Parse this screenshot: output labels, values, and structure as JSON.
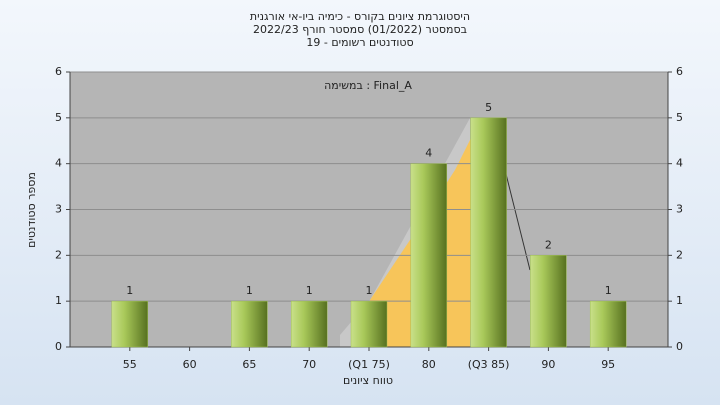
{
  "chart_data": {
    "type": "bar",
    "title": "היסטוגרמת ציונים בקורס - כימיה ביו-אי אורגנית",
    "subtitle": "בסמסטר (01/2022) סמסטר חורף 2022/23",
    "subtitle2": "סטודנטים רשומים - 19",
    "annotation": "במשימה : Final_A",
    "x_label": "טווח ציונים",
    "y_label": "מספר סטודנטים",
    "categories": [
      "55",
      "60",
      "65",
      "70",
      "(Q1 75)",
      "80",
      "(Q3 85)",
      "90",
      "95"
    ],
    "values": [
      1,
      0,
      1,
      1,
      1,
      4,
      5,
      2,
      1
    ],
    "color": "#9fc14a",
    "ylim": [
      0,
      6
    ],
    "yticks": [
      0,
      1,
      2,
      3,
      4,
      5,
      6
    ],
    "y2lim": [
      0,
      6
    ],
    "y2ticks": [
      0,
      1,
      2,
      3,
      4,
      5,
      6
    ],
    "grid": true
  }
}
